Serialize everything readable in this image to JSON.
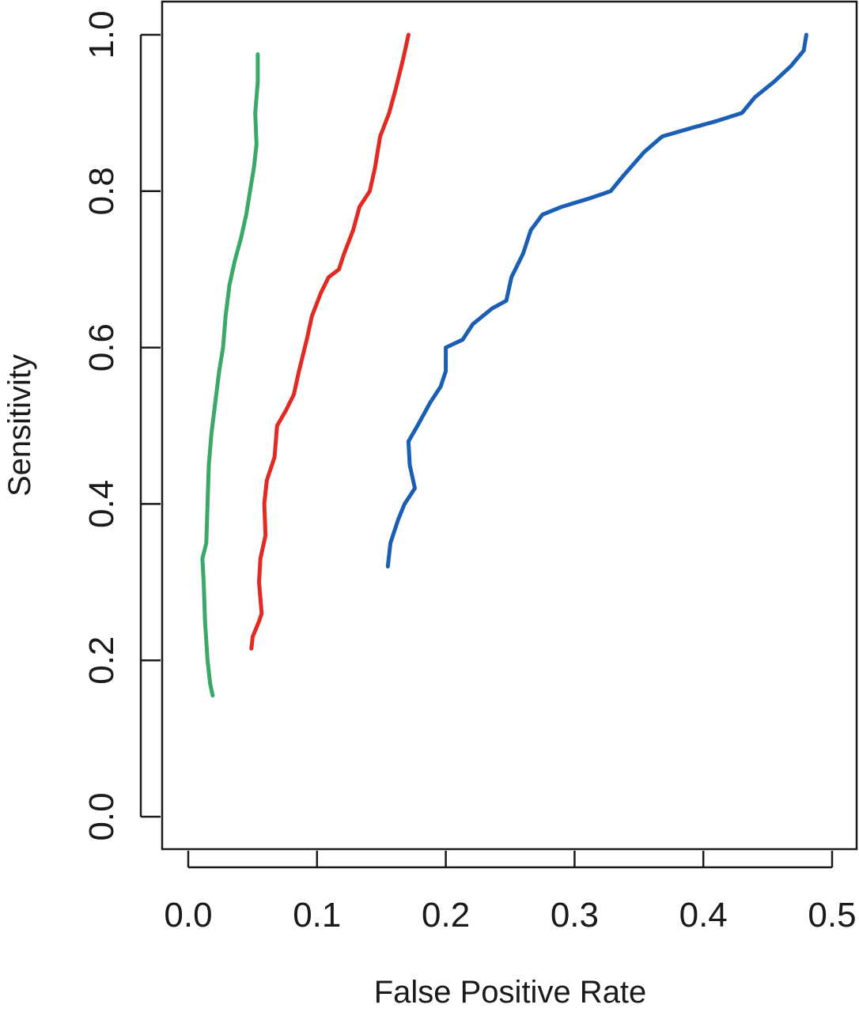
{
  "chart_data": {
    "type": "line",
    "title": "",
    "xlabel": "False Positive Rate",
    "ylabel": "Sensitivity",
    "xlim": [
      0.0,
      0.5
    ],
    "ylim": [
      0.0,
      1.0
    ],
    "x_ticks": [
      "0.0",
      "0.1",
      "0.2",
      "0.3",
      "0.4",
      "0.5"
    ],
    "y_ticks": [
      "0.0",
      "0.2",
      "0.4",
      "0.6",
      "0.8",
      "1.0"
    ],
    "grid": false,
    "legend": "none",
    "series": [
      {
        "color": "#3aa867",
        "points": [
          [
            0.019,
            0.155
          ],
          [
            0.017,
            0.17
          ],
          [
            0.015,
            0.2
          ],
          [
            0.013,
            0.25
          ],
          [
            0.012,
            0.3
          ],
          [
            0.011,
            0.33
          ],
          [
            0.014,
            0.35
          ],
          [
            0.015,
            0.4
          ],
          [
            0.016,
            0.45
          ],
          [
            0.018,
            0.49
          ],
          [
            0.021,
            0.53
          ],
          [
            0.024,
            0.57
          ],
          [
            0.027,
            0.6
          ],
          [
            0.029,
            0.64
          ],
          [
            0.032,
            0.68
          ],
          [
            0.036,
            0.71
          ],
          [
            0.041,
            0.74
          ],
          [
            0.045,
            0.77
          ],
          [
            0.048,
            0.8
          ],
          [
            0.051,
            0.83
          ],
          [
            0.053,
            0.86
          ],
          [
            0.052,
            0.9
          ],
          [
            0.054,
            0.94
          ],
          [
            0.054,
            0.975
          ]
        ]
      },
      {
        "color": "#e02a22",
        "points": [
          [
            0.049,
            0.215
          ],
          [
            0.05,
            0.23
          ],
          [
            0.055,
            0.25
          ],
          [
            0.057,
            0.26
          ],
          [
            0.055,
            0.3
          ],
          [
            0.056,
            0.33
          ],
          [
            0.06,
            0.36
          ],
          [
            0.059,
            0.4
          ],
          [
            0.061,
            0.43
          ],
          [
            0.067,
            0.46
          ],
          [
            0.069,
            0.5
          ],
          [
            0.076,
            0.52
          ],
          [
            0.082,
            0.54
          ],
          [
            0.086,
            0.57
          ],
          [
            0.092,
            0.61
          ],
          [
            0.096,
            0.64
          ],
          [
            0.103,
            0.67
          ],
          [
            0.109,
            0.69
          ],
          [
            0.117,
            0.7
          ],
          [
            0.121,
            0.72
          ],
          [
            0.128,
            0.75
          ],
          [
            0.133,
            0.78
          ],
          [
            0.141,
            0.8
          ],
          [
            0.145,
            0.83
          ],
          [
            0.149,
            0.87
          ],
          [
            0.156,
            0.9
          ],
          [
            0.161,
            0.93
          ],
          [
            0.167,
            0.97
          ],
          [
            0.171,
            1.0
          ]
        ]
      },
      {
        "color": "#1a5fb4",
        "points": [
          [
            0.155,
            0.32
          ],
          [
            0.157,
            0.35
          ],
          [
            0.163,
            0.38
          ],
          [
            0.168,
            0.4
          ],
          [
            0.176,
            0.42
          ],
          [
            0.172,
            0.45
          ],
          [
            0.171,
            0.48
          ],
          [
            0.178,
            0.5
          ],
          [
            0.188,
            0.53
          ],
          [
            0.196,
            0.55
          ],
          [
            0.2,
            0.57
          ],
          [
            0.2,
            0.6
          ],
          [
            0.213,
            0.61
          ],
          [
            0.221,
            0.63
          ],
          [
            0.236,
            0.65
          ],
          [
            0.247,
            0.66
          ],
          [
            0.251,
            0.69
          ],
          [
            0.26,
            0.72
          ],
          [
            0.266,
            0.75
          ],
          [
            0.275,
            0.77
          ],
          [
            0.29,
            0.78
          ],
          [
            0.31,
            0.79
          ],
          [
            0.328,
            0.8
          ],
          [
            0.338,
            0.82
          ],
          [
            0.354,
            0.85
          ],
          [
            0.368,
            0.87
          ],
          [
            0.389,
            0.88
          ],
          [
            0.411,
            0.89
          ],
          [
            0.43,
            0.9
          ],
          [
            0.44,
            0.92
          ],
          [
            0.455,
            0.94
          ],
          [
            0.468,
            0.96
          ],
          [
            0.478,
            0.98
          ],
          [
            0.48,
            1.0
          ]
        ]
      }
    ]
  }
}
